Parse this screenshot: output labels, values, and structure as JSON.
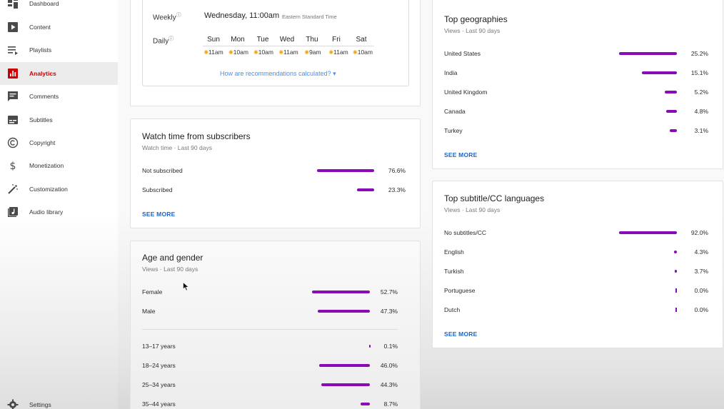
{
  "sidebar": {
    "items": [
      {
        "label": "Dashboard",
        "icon": "dashboard-icon"
      },
      {
        "label": "Content",
        "icon": "content-icon"
      },
      {
        "label": "Playlists",
        "icon": "playlists-icon"
      },
      {
        "label": "Analytics",
        "icon": "analytics-icon",
        "active": true
      },
      {
        "label": "Comments",
        "icon": "comments-icon"
      },
      {
        "label": "Subtitles",
        "icon": "subtitles-icon"
      },
      {
        "label": "Copyright",
        "icon": "copyright-icon"
      },
      {
        "label": "Monetization",
        "icon": "monetization-icon"
      },
      {
        "label": "Customization",
        "icon": "customization-icon"
      },
      {
        "label": "Audio library",
        "icon": "audio-library-icon"
      }
    ],
    "settings_label": "Settings"
  },
  "best_time": {
    "weekly_label": "Weekly",
    "weekly_value": "Wednesday, 11:00am",
    "timezone": "Eastern Standard Time",
    "daily_label": "Daily",
    "days": [
      "Sun",
      "Mon",
      "Tue",
      "Wed",
      "Thu",
      "Fri",
      "Sat"
    ],
    "times": [
      "11am",
      "10am",
      "10am",
      "11am",
      "9am",
      "11am",
      "10am"
    ],
    "calc_link": "How are recommendations calculated?"
  },
  "subscribers": {
    "title": "Watch time from subscribers",
    "subtitle": "Watch time · Last 90 days",
    "rows": [
      {
        "label": "Not subscribed",
        "value": "76.6%",
        "pct": 76.6
      },
      {
        "label": "Subscribed",
        "value": "23.3%",
        "pct": 23.3
      }
    ],
    "see_more": "SEE MORE"
  },
  "age_gender": {
    "title": "Age and gender",
    "subtitle": "Views · Last 90 days",
    "gender_rows": [
      {
        "label": "Female",
        "value": "52.7%",
        "pct": 52.7
      },
      {
        "label": "Male",
        "value": "47.3%",
        "pct": 47.3
      }
    ],
    "age_rows": [
      {
        "label": "13–17 years",
        "value": "0.1%",
        "pct": 0.1
      },
      {
        "label": "18–24 years",
        "value": "46.0%",
        "pct": 46.0
      },
      {
        "label": "25–34 years",
        "value": "44.3%",
        "pct": 44.3
      },
      {
        "label": "35–44 years",
        "value": "8.7%",
        "pct": 8.7
      }
    ]
  },
  "geographies": {
    "title": "Top geographies",
    "subtitle": "Views · Last 90 days",
    "rows": [
      {
        "label": "United States",
        "value": "25.2%",
        "pct": 25.2
      },
      {
        "label": "India",
        "value": "15.1%",
        "pct": 15.1
      },
      {
        "label": "United Kingdom",
        "value": "5.2%",
        "pct": 5.2
      },
      {
        "label": "Canada",
        "value": "4.8%",
        "pct": 4.8
      },
      {
        "label": "Turkey",
        "value": "3.1%",
        "pct": 3.1
      }
    ],
    "see_more": "SEE MORE"
  },
  "subtitles_cc": {
    "title": "Top subtitle/CC languages",
    "subtitle": "Views · Last 90 days",
    "rows": [
      {
        "label": "No subtitles/CC",
        "value": "92.0%",
        "pct": 92.0
      },
      {
        "label": "English",
        "value": "4.3%",
        "pct": 4.3
      },
      {
        "label": "Turkish",
        "value": "3.7%",
        "pct": 3.7
      },
      {
        "label": "Portuguese",
        "value": "0.0%",
        "pct": 0.0
      },
      {
        "label": "Dutch",
        "value": "0.0%",
        "pct": 0.0
      }
    ],
    "see_more": "SEE MORE"
  },
  "colors": {
    "bar": "#8a0ab8",
    "active_nav": "#cc0000",
    "link": "#1a65c7"
  }
}
